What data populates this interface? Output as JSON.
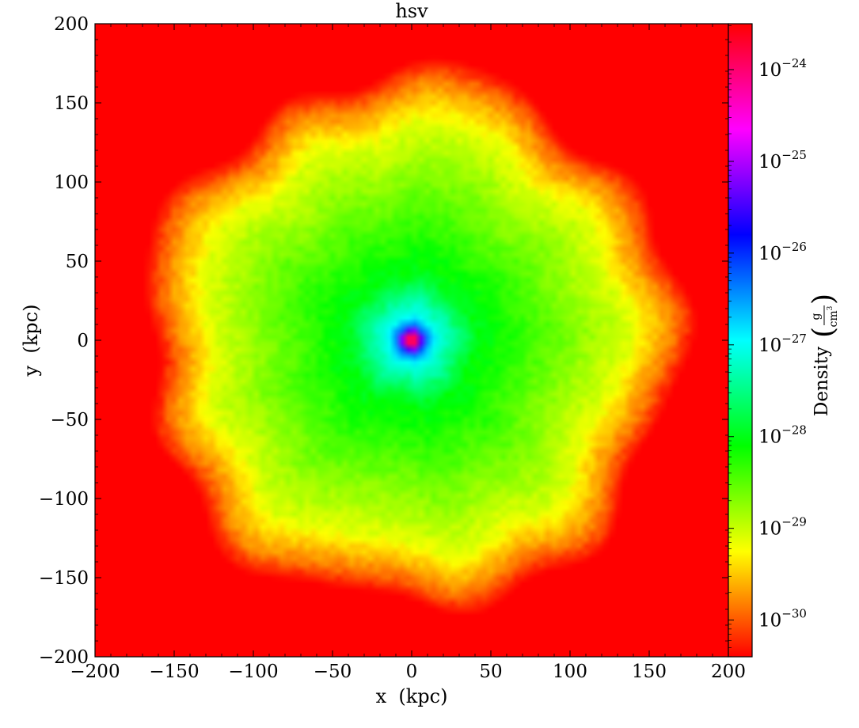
{
  "chart_data": {
    "type": "heatmap",
    "title": "hsv",
    "xlabel": "x  (kpc)",
    "ylabel": "y  (kpc)",
    "xlim": [
      -200,
      200
    ],
    "ylim": [
      -200,
      200
    ],
    "x_ticks": [
      -200,
      -150,
      -100,
      -50,
      0,
      50,
      100,
      150,
      200
    ],
    "x_tick_labels": [
      "−200",
      "−150",
      "−100",
      "−50",
      "0",
      "50",
      "100",
      "150",
      "200"
    ],
    "y_ticks": [
      -200,
      -150,
      -100,
      -50,
      0,
      50,
      100,
      150,
      200
    ],
    "y_tick_labels": [
      "−200",
      "−150",
      "−100",
      "−50",
      "0",
      "50",
      "100",
      "150",
      "200"
    ],
    "colormap": "hsv",
    "colorbar": {
      "label": "Density",
      "unit_numerator": "g",
      "unit_denominator": "cm",
      "unit_denominator_exp": "3",
      "scale": "log",
      "range_log10": [
        -30.4,
        -23.5
      ],
      "ticks_log10": [
        -30,
        -29,
        -28,
        -27,
        -26,
        -25,
        -24
      ],
      "tick_labels": [
        {
          "base": "10",
          "exp": "−30"
        },
        {
          "base": "10",
          "exp": "−29"
        },
        {
          "base": "10",
          "exp": "−28"
        },
        {
          "base": "10",
          "exp": "−27"
        },
        {
          "base": "10",
          "exp": "−26"
        },
        {
          "base": "10",
          "exp": "−25"
        },
        {
          "base": "10",
          "exp": "−24"
        }
      ]
    },
    "field": {
      "description_units": "log10 density (g/cm^3) vs radius (kpc)",
      "background_log10": -30.4,
      "radial_profile": [
        {
          "r_kpc": 0,
          "log10_density": -23.8
        },
        {
          "r_kpc": 4,
          "log10_density": -24.0
        },
        {
          "r_kpc": 8,
          "log10_density": -26.2
        },
        {
          "r_kpc": 15,
          "log10_density": -27.0
        },
        {
          "r_kpc": 40,
          "log10_density": -28.0
        },
        {
          "r_kpc": 90,
          "log10_density": -28.6
        },
        {
          "r_kpc": 130,
          "log10_density": -29.1
        },
        {
          "r_kpc": 155,
          "log10_density": -29.8
        },
        {
          "r_kpc": 170,
          "log10_density": -30.4
        }
      ]
    }
  }
}
